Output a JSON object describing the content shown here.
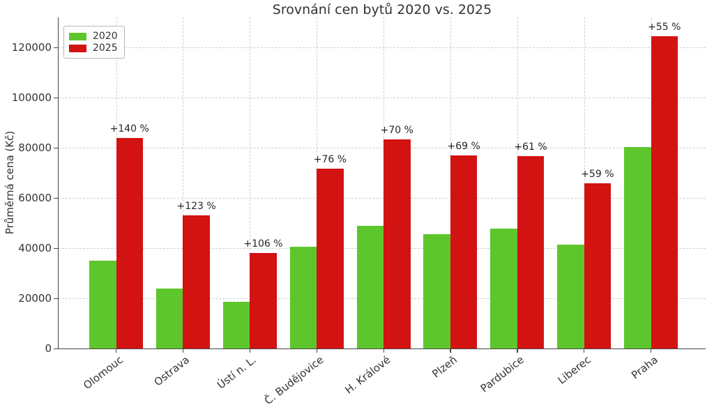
{
  "chart_data": {
    "type": "bar",
    "title": "Srovnání cen bytů 2020 vs. 2025",
    "ylabel": "Průměrná cena (Kč)",
    "xlabel": "",
    "categories": [
      "Olomouc",
      "Ostrava",
      "Ústí n. L.",
      "Č. Budějovice",
      "H. Králové",
      "Plzeň",
      "Pardubice",
      "Liberec",
      "Praha"
    ],
    "series": [
      {
        "name": "2020",
        "color": "#5ec62d",
        "values": [
          35000,
          23800,
          18500,
          40700,
          49000,
          45500,
          47700,
          41500,
          80300
        ]
      },
      {
        "name": "2025",
        "color": "#d31212",
        "values": [
          84000,
          53000,
          38100,
          71600,
          83300,
          76900,
          76800,
          66000,
          124500
        ]
      }
    ],
    "annotations": [
      "+140 %",
      "+123 %",
      "+106 %",
      "+76 %",
      "+70 %",
      "+69 %",
      "+61 %",
      "+59 %",
      "+55 %"
    ],
    "yticks": [
      0,
      20000,
      40000,
      60000,
      80000,
      100000,
      120000
    ],
    "yticklabels": [
      "0",
      "20000",
      "40000",
      "60000",
      "80000",
      "100000",
      "120000"
    ],
    "ylim": [
      0,
      132000
    ],
    "grid": "dashed-both-axes",
    "legend_position": "upper-left"
  }
}
